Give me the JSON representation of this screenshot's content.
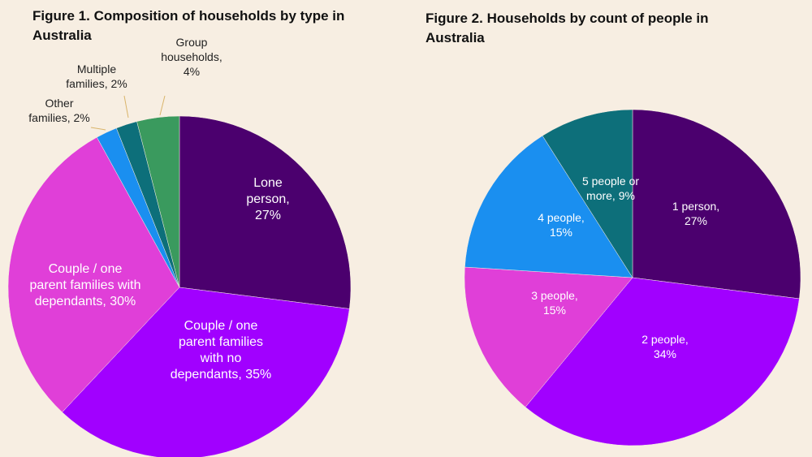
{
  "chart_data": [
    {
      "type": "pie",
      "title": "Figure 1. Composition of households by type in Australia",
      "slices": [
        {
          "label": [
            "Lone",
            "person,",
            "27%"
          ],
          "value": 27,
          "color": "#4b006e"
        },
        {
          "label": [
            "Couple / one",
            "parent families",
            "with no",
            "dependants, 35%"
          ],
          "value": 35,
          "color": "#a100ff"
        },
        {
          "label": [
            "Couple / one",
            "parent families with",
            "dependants, 30%"
          ],
          "value": 30,
          "color": "#e03fd8"
        },
        {
          "label": [
            "Other",
            "families, 2%"
          ],
          "value": 2,
          "color": "#1a8ff0"
        },
        {
          "label": [
            "Multiple",
            "families, 2%"
          ],
          "value": 2,
          "color": "#0d6f7a"
        },
        {
          "label": [
            "Group",
            "households,",
            "4%"
          ],
          "value": 4,
          "color": "#3a9a5e"
        }
      ]
    },
    {
      "type": "pie",
      "title": "Figure 2. Households by count of people in Australia",
      "slices": [
        {
          "label": [
            "1 person,",
            "27%"
          ],
          "value": 27,
          "color": "#4b006e"
        },
        {
          "label": [
            "2 people,",
            "34%"
          ],
          "value": 34,
          "color": "#a100ff"
        },
        {
          "label": [
            "3 people,",
            "15%"
          ],
          "value": 15,
          "color": "#e03fd8"
        },
        {
          "label": [
            "4 people,",
            "15%"
          ],
          "value": 15,
          "color": "#1a8ff0"
        },
        {
          "label": [
            "5 people or",
            "more, 9%"
          ],
          "value": 9,
          "color": "#0d6f7a"
        }
      ]
    }
  ]
}
